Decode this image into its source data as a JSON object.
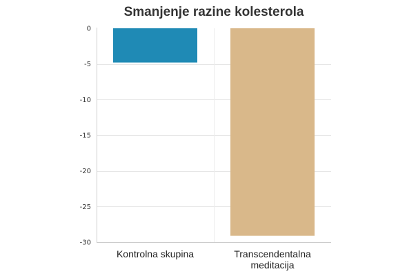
{
  "chart_data": {
    "type": "bar",
    "title": "Smanjenje razine kolesterola",
    "categories": [
      [
        "Kontrolna skupina"
      ],
      [
        "Transcendentalna",
        "meditacija"
      ]
    ],
    "values": [
      -4.8,
      -29.1
    ],
    "colors": [
      "#1f8ab5",
      "#d9b88a"
    ],
    "ylim": [
      -30,
      0
    ],
    "yticks": [
      0,
      -5,
      -10,
      -15,
      -20,
      -25,
      -30
    ],
    "grid": true,
    "legend": "none",
    "xlabel": "",
    "ylabel": ""
  }
}
